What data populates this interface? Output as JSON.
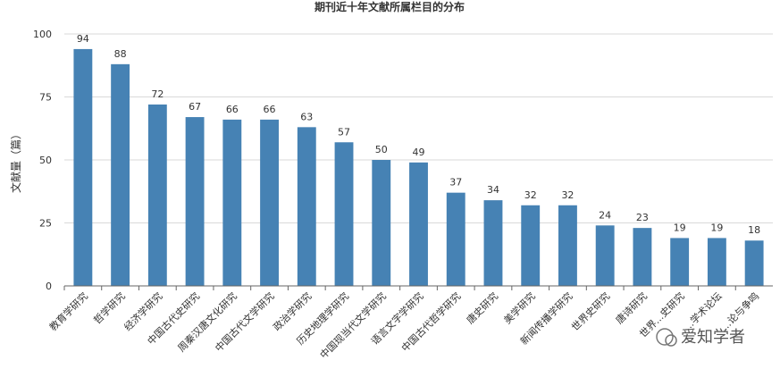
{
  "chart_data": {
    "type": "bar",
    "title": "期刊近十年文献所属栏目的分布",
    "ylabel": "文献量（篇）",
    "xlabel": "",
    "ylim": [
      0,
      100
    ],
    "yticks": [
      0,
      25,
      50,
      75,
      100
    ],
    "grid": true,
    "bar_color": "#4682b4",
    "categories": [
      "教育学研究",
      "哲学研究",
      "经济学研究",
      "中国古代史研究",
      "周秦汉唐文化研究",
      "中国古代文学研究",
      "政治学研究",
      "历史地理学研究",
      "中国现当代文学研究",
      "语言文字学研究",
      "中国古代哲学研究",
      "唐史研究",
      "美学研究",
      "新闻传播学研究",
      "世界史研究",
      "唐诗研究",
      "世界...史研究",
      "...学术论坛",
      "...论与争鸣"
    ],
    "values": [
      94,
      88,
      72,
      67,
      66,
      66,
      63,
      57,
      50,
      49,
      37,
      34,
      32,
      32,
      24,
      23,
      19,
      19,
      18
    ]
  },
  "watermark": {
    "text": "爱知学者"
  }
}
